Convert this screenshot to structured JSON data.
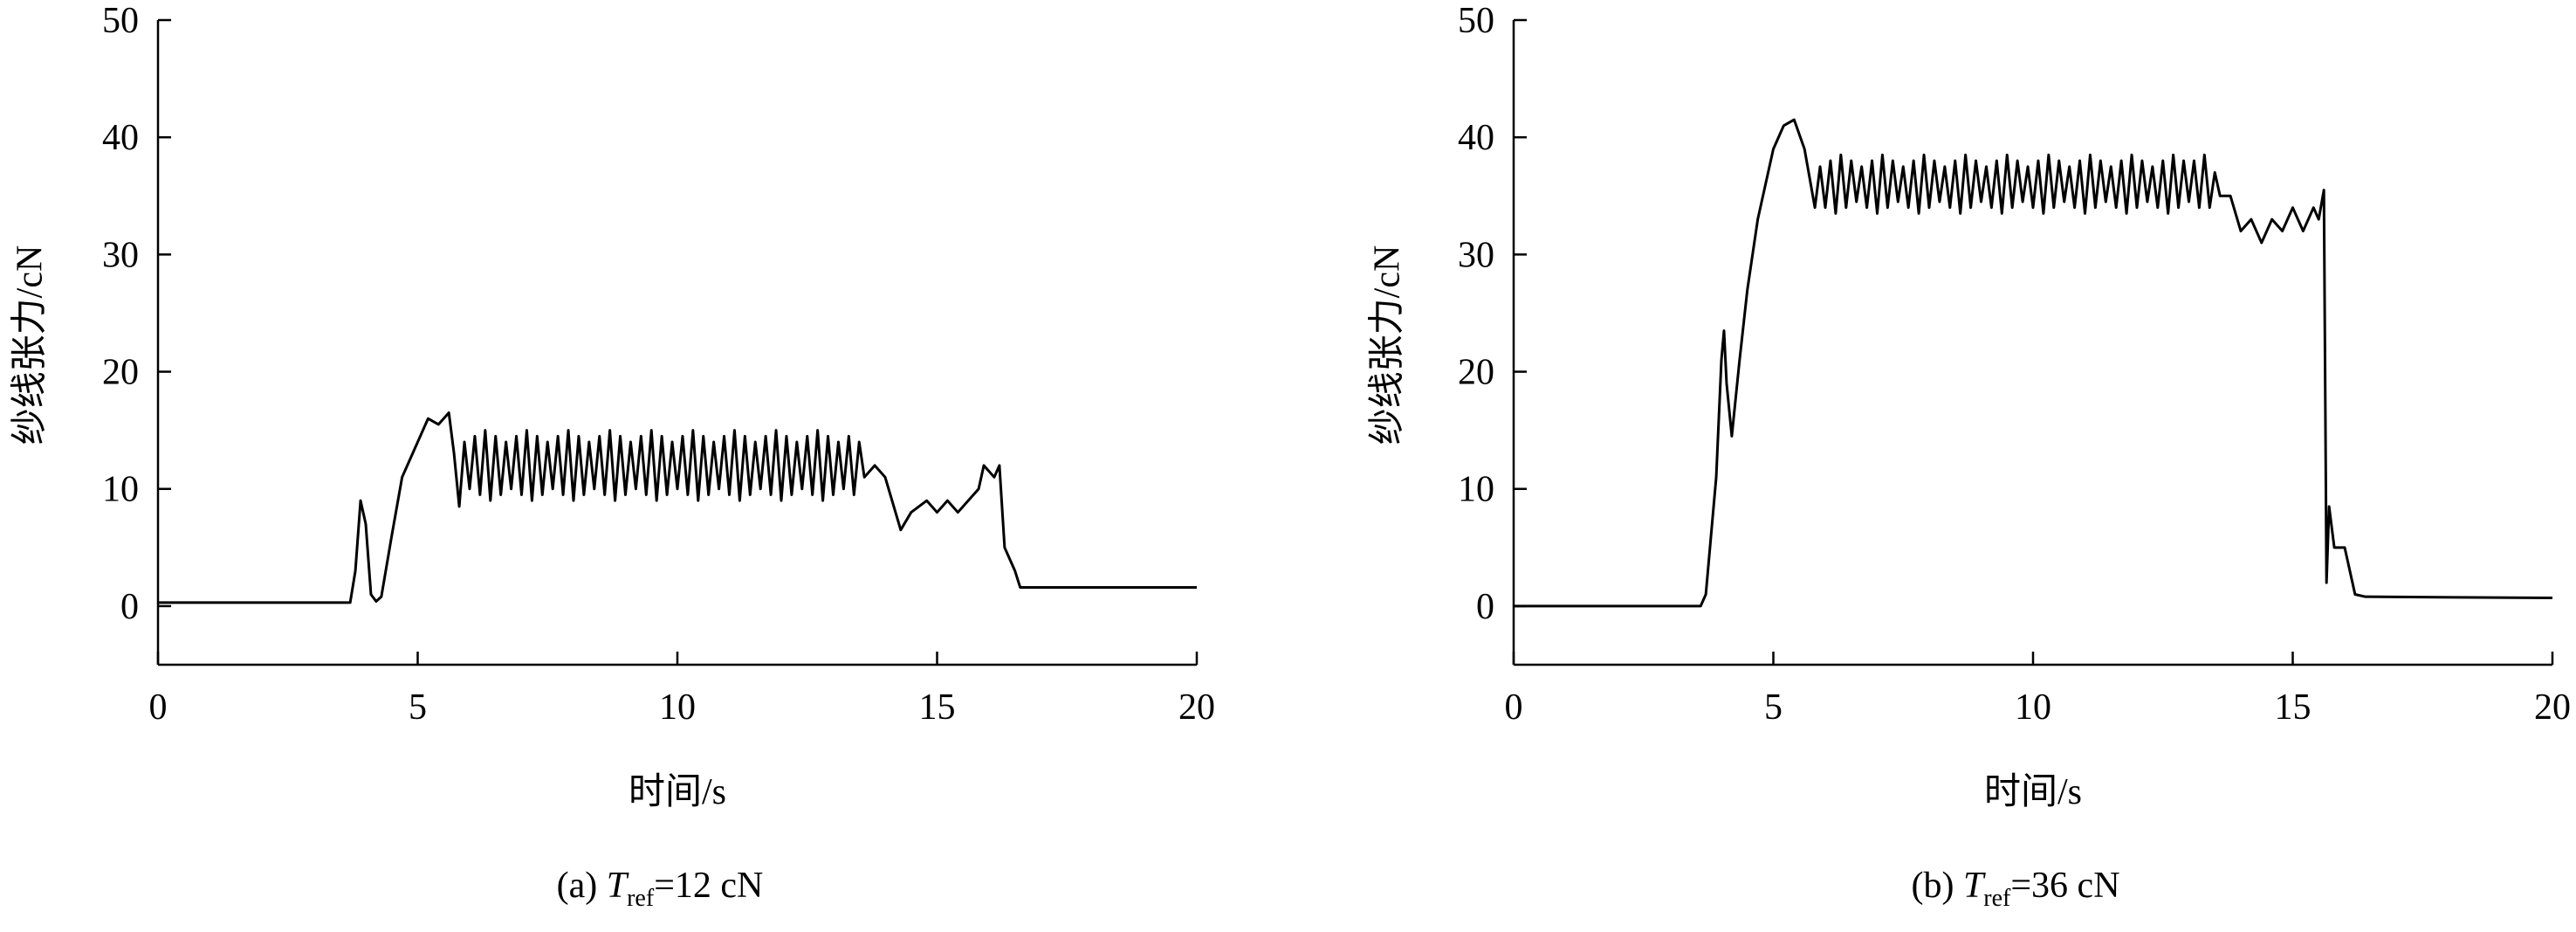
{
  "chart_data": [
    {
      "type": "line",
      "ylabel": "纱线张力/cN",
      "xlabel": "时间/s",
      "caption": {
        "prefix": "(a) ",
        "symbol": "T",
        "subscript": "ref",
        "suffix": "=12 cN"
      },
      "color": "#000000",
      "xlim": [
        0,
        20
      ],
      "ylim": [
        -5,
        50
      ],
      "xticks": [
        0,
        5,
        10,
        15,
        20
      ],
      "yticks": [
        0,
        10,
        20,
        30,
        40,
        50
      ],
      "x": [
        0,
        3.7,
        3.8,
        3.9,
        4.0,
        4.1,
        4.2,
        4.3,
        4.5,
        4.7,
        5.0,
        5.2,
        5.4,
        5.6,
        5.7,
        5.8,
        5.9,
        6,
        6.1,
        6.2,
        6.3,
        6.4,
        6.5,
        6.6,
        6.7,
        6.8,
        6.9,
        7,
        7.1,
        7.2,
        7.3,
        7.4,
        7.5,
        7.6,
        7.7,
        7.8,
        7.9,
        8,
        8.1,
        8.2,
        8.3,
        8.4,
        8.5,
        8.6,
        8.7,
        8.8,
        8.9,
        9,
        9.1,
        9.2,
        9.3,
        9.4,
        9.5,
        9.6,
        9.7,
        9.8,
        9.9,
        10,
        10.1,
        10.2,
        10.3,
        10.4,
        10.5,
        10.6,
        10.7,
        10.8,
        10.9,
        11,
        11.1,
        11.2,
        11.3,
        11.4,
        11.5,
        11.6,
        11.7,
        11.8,
        11.9,
        12,
        12.1,
        12.2,
        12.3,
        12.4,
        12.5,
        12.6,
        12.7,
        12.8,
        12.9,
        13,
        13.1,
        13.2,
        13.3,
        13.4,
        13.5,
        13.6,
        13.8,
        14.0,
        14.2,
        14.3,
        14.5,
        14.8,
        15.0,
        15.2,
        15.4,
        15.6,
        15.8,
        15.9,
        16.1,
        16.2,
        16.3,
        16.5,
        16.6,
        20
      ],
      "values": [
        0.3,
        0.3,
        3,
        9,
        7,
        1,
        0.4,
        0.8,
        6,
        11,
        14,
        16,
        15.5,
        16.5,
        13,
        8.5,
        14,
        10,
        14.5,
        9.5,
        15,
        9,
        14.5,
        9.5,
        14,
        10,
        14.5,
        9.5,
        15,
        9,
        14.5,
        9.5,
        14,
        10,
        14.5,
        9.5,
        15,
        9,
        14.5,
        9.5,
        14,
        10,
        14.5,
        9.5,
        15,
        9,
        14.5,
        9.5,
        14,
        10,
        14.5,
        9.5,
        15,
        9,
        14.5,
        9.5,
        14,
        10,
        14.5,
        9.5,
        15,
        9,
        14.5,
        9.5,
        14,
        10,
        14.5,
        9.5,
        15,
        9,
        14.5,
        9.5,
        14,
        10,
        14.5,
        9.5,
        15,
        9,
        14.5,
        9.5,
        14,
        10,
        14.5,
        9.5,
        15,
        9,
        14.5,
        9.5,
        14,
        10,
        14.5,
        9.5,
        14,
        11,
        12,
        11,
        8,
        6.5,
        8,
        9,
        8,
        9,
        8,
        9,
        10,
        12,
        11,
        12,
        5,
        3,
        1.6,
        1.6
      ]
    },
    {
      "type": "line",
      "ylabel": "纱线张力/cN",
      "xlabel": "时间/s",
      "caption": {
        "prefix": "(b) ",
        "symbol": "T",
        "subscript": "ref",
        "suffix": "=36 cN"
      },
      "color": "#000000",
      "xlim": [
        0,
        20
      ],
      "ylim": [
        -5,
        50
      ],
      "xticks": [
        0,
        5,
        10,
        15,
        20
      ],
      "yticks": [
        0,
        10,
        20,
        30,
        40,
        50
      ],
      "x": [
        0,
        3.6,
        3.7,
        3.9,
        4.0,
        4.05,
        4.1,
        4.2,
        4.35,
        4.5,
        4.7,
        5.0,
        5.2,
        5.4,
        5.6,
        5.8,
        5.9,
        6,
        6.1,
        6.2,
        6.3,
        6.4,
        6.5,
        6.6,
        6.7,
        6.8,
        6.9,
        7,
        7.1,
        7.2,
        7.3,
        7.4,
        7.5,
        7.6,
        7.7,
        7.8,
        7.9,
        8,
        8.1,
        8.2,
        8.3,
        8.4,
        8.5,
        8.6,
        8.7,
        8.8,
        8.9,
        9,
        9.1,
        9.2,
        9.3,
        9.4,
        9.5,
        9.6,
        9.7,
        9.8,
        9.9,
        10,
        10.1,
        10.2,
        10.3,
        10.4,
        10.5,
        10.6,
        10.7,
        10.8,
        10.9,
        11,
        11.1,
        11.2,
        11.3,
        11.4,
        11.5,
        11.6,
        11.7,
        11.8,
        11.9,
        12,
        12.1,
        12.2,
        12.3,
        12.4,
        12.5,
        12.6,
        12.7,
        12.8,
        12.9,
        13,
        13.1,
        13.2,
        13.3,
        13.4,
        13.5,
        13.6,
        13.8,
        14.0,
        14.2,
        14.4,
        14.6,
        14.8,
        15.0,
        15.2,
        15.4,
        15.5,
        15.6,
        15.65,
        15.7,
        15.8,
        16.0,
        16.2,
        16.4,
        20
      ],
      "values": [
        0,
        0,
        1,
        11,
        21,
        23.5,
        19,
        14.5,
        21,
        27,
        33,
        39,
        41,
        41.5,
        39,
        34,
        37.5,
        34,
        38,
        33.5,
        38.5,
        34,
        38,
        34.5,
        37.5,
        34,
        38,
        33.5,
        38.5,
        34,
        38,
        34.5,
        37.5,
        34,
        38,
        33.5,
        38.5,
        34,
        38,
        34.5,
        37.5,
        34,
        38,
        33.5,
        38.5,
        34,
        38,
        34.5,
        37.5,
        34,
        38,
        33.5,
        38.5,
        34,
        38,
        34.5,
        37.5,
        34,
        38,
        33.5,
        38.5,
        34,
        38,
        34.5,
        37.5,
        34,
        38,
        33.5,
        38.5,
        34,
        38,
        34.5,
        37.5,
        34,
        38,
        33.5,
        38.5,
        34,
        38,
        34.5,
        37.5,
        34,
        38,
        33.5,
        38.5,
        34,
        38,
        34.5,
        38,
        34,
        38.5,
        34,
        37,
        35,
        35,
        32,
        33,
        31,
        33,
        32,
        34,
        32,
        34,
        33,
        35.5,
        2,
        8.5,
        5,
        5,
        1,
        0.8,
        0.7
      ]
    }
  ]
}
